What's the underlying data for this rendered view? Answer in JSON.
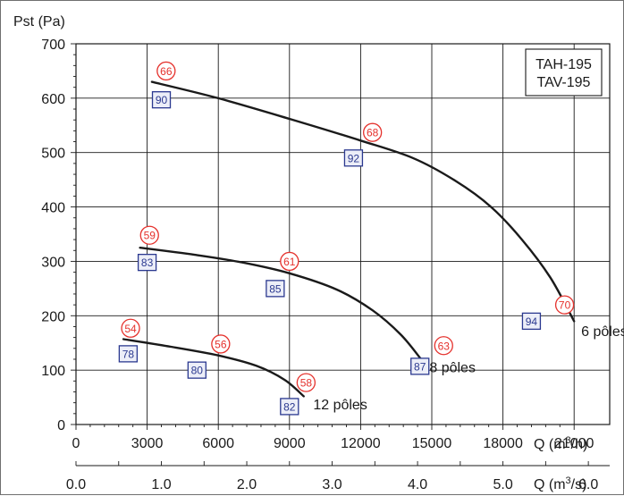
{
  "chart_data": {
    "type": "line",
    "title": "",
    "ylabel": "Pst (Pa)",
    "xlabel": "Q (m³/h)",
    "xlabel_parts": [
      "Q (m",
      "3",
      "/h)"
    ],
    "x2label_parts": [
      "Q (m",
      "3",
      "/s)"
    ],
    "xlim": [
      0,
      22500
    ],
    "ylim": [
      0,
      700
    ],
    "x_ticks": [
      0,
      3000,
      6000,
      9000,
      12000,
      15000,
      18000,
      21000
    ],
    "x_tick_labels": [
      "0",
      "3000",
      "6000",
      "9000",
      "12000",
      "15000",
      "18000",
      "21000"
    ],
    "x2_ticks": [
      0.0,
      1.0,
      2.0,
      3.0,
      4.0,
      5.0,
      6.0
    ],
    "x2_tick_labels": [
      "0.0",
      "1.0",
      "2.0",
      "3.0",
      "4.0",
      "5.0",
      "6.0"
    ],
    "y_ticks": [
      0,
      100,
      200,
      300,
      400,
      500,
      600,
      700
    ],
    "y_tick_labels": [
      "0",
      "100",
      "200",
      "300",
      "400",
      "500",
      "600",
      "700"
    ],
    "grid": true,
    "legend_box": {
      "position": "top-right",
      "lines": [
        "TAH-195",
        "TAV-195"
      ]
    },
    "series": [
      {
        "name": "6 pôles",
        "points": [
          [
            3200,
            630
          ],
          [
            6000,
            600
          ],
          [
            9000,
            562
          ],
          [
            12000,
            522
          ],
          [
            14200,
            490
          ],
          [
            16000,
            448
          ],
          [
            17500,
            400
          ],
          [
            18800,
            340
          ],
          [
            20000,
            270
          ],
          [
            21000,
            190
          ]
        ],
        "noise_labels": [
          {
            "value": "66",
            "x": 3800,
            "y": 650
          },
          {
            "value": "68",
            "x": 12500,
            "y": 537
          },
          {
            "value": "70",
            "x": 20600,
            "y": 220
          }
        ],
        "power_labels": [
          {
            "value": "90",
            "x": 3600,
            "y": 597
          },
          {
            "value": "92",
            "x": 11700,
            "y": 490
          },
          {
            "value": "94",
            "x": 19200,
            "y": 190
          }
        ],
        "label_pos": {
          "x": 21300,
          "y": 163
        }
      },
      {
        "name": "8 pôles",
        "points": [
          [
            2700,
            325
          ],
          [
            5000,
            312
          ],
          [
            7000,
            298
          ],
          [
            9000,
            278
          ],
          [
            11000,
            248
          ],
          [
            12500,
            210
          ],
          [
            13700,
            165
          ],
          [
            14600,
            117
          ]
        ],
        "noise_labels": [
          {
            "value": "59",
            "x": 3100,
            "y": 348
          },
          {
            "value": "61",
            "x": 9000,
            "y": 300
          },
          {
            "value": "63",
            "x": 15500,
            "y": 145
          }
        ],
        "power_labels": [
          {
            "value": "83",
            "x": 3000,
            "y": 298
          },
          {
            "value": "85",
            "x": 8400,
            "y": 250
          },
          {
            "value": "87",
            "x": 14500,
            "y": 107
          }
        ],
        "label_pos": {
          "x": 14900,
          "y": 96
        }
      },
      {
        "name": "12 pôles",
        "points": [
          [
            2000,
            157
          ],
          [
            4000,
            143
          ],
          [
            6000,
            127
          ],
          [
            7600,
            108
          ],
          [
            8800,
            82
          ],
          [
            9600,
            52
          ]
        ],
        "noise_labels": [
          {
            "value": "54",
            "x": 2300,
            "y": 177
          },
          {
            "value": "56",
            "x": 6100,
            "y": 148
          },
          {
            "value": "58",
            "x": 9700,
            "y": 77
          }
        ],
        "power_labels": [
          {
            "value": "78",
            "x": 2200,
            "y": 130
          },
          {
            "value": "80",
            "x": 5100,
            "y": 100
          },
          {
            "value": "82",
            "x": 9000,
            "y": 33
          }
        ],
        "label_pos": {
          "x": 10000,
          "y": 28
        }
      }
    ]
  },
  "colors": {
    "curve": "#1a1a1a",
    "grid": "#1a1a1a",
    "noise_badge": "#e5322d",
    "power_badge": "#2b3990",
    "power_fill": "#eceef8",
    "text": "#1a1a1a"
  }
}
